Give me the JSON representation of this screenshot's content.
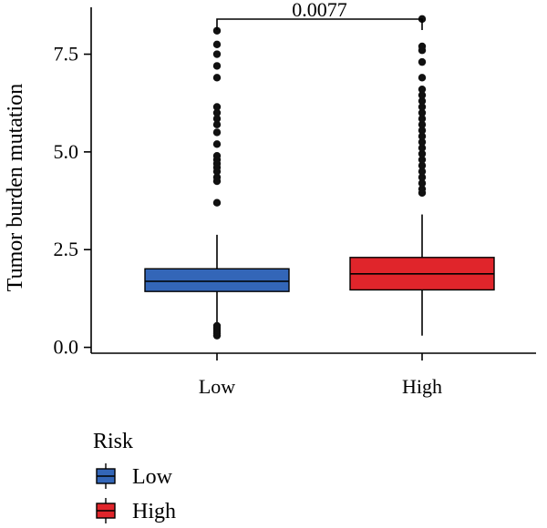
{
  "chart_data": {
    "type": "box",
    "xlabel": "",
    "ylabel": "Tumor burden mutation",
    "ylim": [
      -0.15,
      8.7
    ],
    "yticks": [
      0.0,
      2.5,
      5.0,
      7.5
    ],
    "ytick_labels": [
      "0.0",
      "2.5",
      "5.0",
      "7.5"
    ],
    "categories": [
      "Low",
      "High"
    ],
    "grid": false,
    "legend": {
      "title": "Risk",
      "position": "bottom-left",
      "items": [
        {
          "label": "Low",
          "color": "#3366B8"
        },
        {
          "label": "High",
          "color": "#E0252B"
        }
      ]
    },
    "comparison": {
      "groups": [
        "Low",
        "High"
      ],
      "label": "0.0077",
      "y": 8.85
    },
    "series": [
      {
        "name": "Low",
        "color": "#3366B8",
        "q1": 1.43,
        "median": 1.69,
        "q3": 2.01,
        "whisker_low": 0.62,
        "whisker_high": 2.88,
        "outliers": [
          0.3,
          0.35,
          0.4,
          0.45,
          0.5,
          0.55,
          3.7,
          4.25,
          4.35,
          4.5,
          4.6,
          4.7,
          4.8,
          4.9,
          5.2,
          5.5,
          5.7,
          5.85,
          6.0,
          6.15,
          6.9,
          7.2,
          7.5,
          7.75,
          8.1
        ]
      },
      {
        "name": "High",
        "color": "#E0252B",
        "q1": 1.47,
        "median": 1.88,
        "q3": 2.3,
        "whisker_low": 0.3,
        "whisker_high": 3.4,
        "outliers": [
          3.95,
          4.05,
          4.2,
          4.35,
          4.5,
          4.65,
          4.8,
          4.95,
          5.1,
          5.25,
          5.4,
          5.55,
          5.7,
          5.85,
          6.0,
          6.15,
          6.3,
          6.45,
          6.6,
          6.9,
          7.3,
          7.6,
          7.7,
          8.4
        ]
      }
    ]
  }
}
